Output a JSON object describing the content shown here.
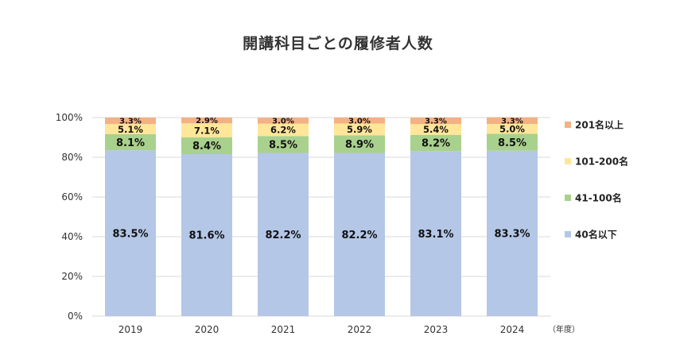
{
  "chart_data": {
    "type": "bar",
    "stacked": true,
    "title": "開講科目ごとの履修者人数",
    "x_unit_label": "（年度）",
    "categories": [
      "2019",
      "2020",
      "2021",
      "2022",
      "2023",
      "2024"
    ],
    "y_ticks": [
      "0%",
      "20%",
      "40%",
      "60%",
      "80%",
      "100%"
    ],
    "ylim": [
      0,
      100
    ],
    "grid": true,
    "legend_position": "right",
    "series": [
      {
        "name": "40名以下",
        "color": "#b4c7e7",
        "values": [
          83.5,
          81.6,
          82.2,
          82.2,
          83.1,
          83.3
        ],
        "labels": [
          "83.5%",
          "81.6%",
          "82.2%",
          "82.2%",
          "83.1%",
          "83.3%"
        ]
      },
      {
        "name": "41-100名",
        "color": "#a9d18e",
        "values": [
          8.1,
          8.4,
          8.5,
          8.9,
          8.2,
          8.5
        ],
        "labels": [
          "8.1%",
          "8.4%",
          "8.5%",
          "8.9%",
          "8.2%",
          "8.5%"
        ]
      },
      {
        "name": "101-200名",
        "color": "#ffe699",
        "values": [
          5.1,
          7.1,
          6.2,
          5.9,
          5.4,
          5.0
        ],
        "labels": [
          "5.1%",
          "7.1%",
          "6.2%",
          "5.9%",
          "5.4%",
          "5.0%"
        ]
      },
      {
        "name": "201名以上",
        "color": "#f4b183",
        "values": [
          3.3,
          2.9,
          3.0,
          3.0,
          3.3,
          3.3
        ],
        "labels": [
          "3.3%",
          "2.9%",
          "3.0%",
          "3.0%",
          "3.3%",
          "3.3%"
        ]
      }
    ]
  }
}
